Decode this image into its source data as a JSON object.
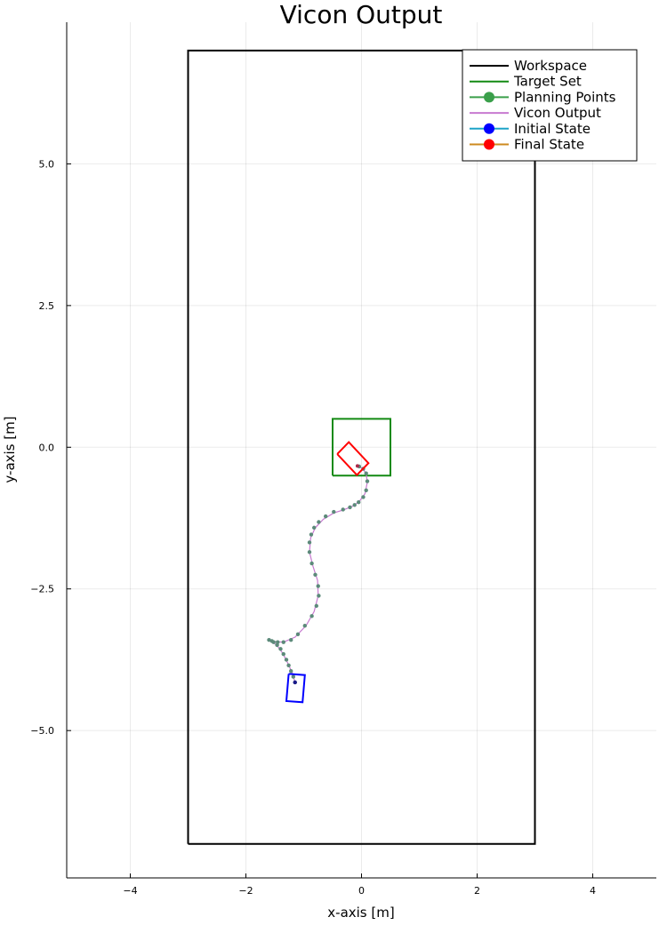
{
  "chart_data": {
    "type": "line",
    "title": "Vicon Output",
    "xlabel": "x-axis [m]",
    "ylabel": "y-axis [m]",
    "xlim": [
      -5.1,
      5.1
    ],
    "ylim": [
      -7.6,
      7.5
    ],
    "xticks": [
      -4,
      -2,
      0,
      2,
      4
    ],
    "xtick_labels": [
      "−4",
      "−2",
      "0",
      "2",
      "4"
    ],
    "yticks": [
      -5,
      -2.5,
      0,
      2.5,
      5
    ],
    "ytick_labels": [
      "−5.0",
      "−2.5",
      "0.0",
      "2.5",
      "5.0"
    ],
    "grid": true,
    "legend_position": "top-right",
    "legend": [
      {
        "label": "Workspace",
        "color": "#000000",
        "marker": false
      },
      {
        "label": "Target Set",
        "color": "#138a13",
        "marker": false
      },
      {
        "label": "Planning Points",
        "color": "#3a9f4a",
        "marker": true
      },
      {
        "label": "Vicon Output",
        "color": "#c77ad0",
        "marker": false
      },
      {
        "label": "Initial State",
        "color": "#1ea3c8",
        "marker": true,
        "marker_color": "#0000ff"
      },
      {
        "label": "Final State",
        "color": "#cc8a1e",
        "marker": true,
        "marker_color": "#ff0000"
      }
    ],
    "workspace": {
      "x": [
        -3,
        3,
        3,
        -3,
        -3
      ],
      "y": [
        -7,
        -7,
        7,
        7,
        -7
      ],
      "color": "#000000"
    },
    "target_set": {
      "x": [
        -0.5,
        0.5,
        0.5,
        -0.5,
        -0.5
      ],
      "y": [
        -0.5,
        -0.5,
        0.5,
        0.5,
        -0.5
      ],
      "color": "#138a13"
    },
    "planning_points": {
      "color": "#5c8a7a",
      "x": [
        -1.15,
        -1.18,
        -1.22,
        -1.26,
        -1.3,
        -1.35,
        -1.4,
        -1.46,
        -1.52,
        -1.6,
        -1.55,
        -1.45,
        -1.35,
        -1.22,
        -1.1,
        -0.98,
        -0.86,
        -0.78,
        -0.74,
        -0.75,
        -0.8,
        -0.86,
        -0.9,
        -0.9,
        -0.87,
        -0.82,
        -0.74,
        -0.62,
        -0.48,
        -0.32,
        -0.2,
        -0.12,
        -0.05,
        0.03,
        0.08,
        0.1,
        0.08,
        0.03,
        -0.04
      ],
      "y": [
        -4.15,
        -4.05,
        -3.95,
        -3.85,
        -3.75,
        -3.65,
        -3.56,
        -3.49,
        -3.44,
        -3.4,
        -3.42,
        -3.44,
        -3.44,
        -3.4,
        -3.3,
        -3.15,
        -2.98,
        -2.8,
        -2.62,
        -2.45,
        -2.25,
        -2.05,
        -1.85,
        -1.68,
        -1.54,
        -1.42,
        -1.32,
        -1.22,
        -1.14,
        -1.1,
        -1.06,
        -1.02,
        -0.97,
        -0.88,
        -0.76,
        -0.6,
        -0.46,
        -0.38,
        -0.34
      ]
    },
    "vicon_output": {
      "color": "#c77ad0",
      "x": [
        -1.15,
        -1.2,
        -1.28,
        -1.36,
        -1.46,
        -1.56,
        -1.6,
        -1.5,
        -1.35,
        -1.15,
        -0.96,
        -0.82,
        -0.75,
        -0.76,
        -0.84,
        -0.9,
        -0.88,
        -0.8,
        -0.66,
        -0.48,
        -0.3,
        -0.15,
        -0.04,
        0.06,
        0.1,
        0.08,
        0.02,
        -0.06
      ],
      "y": [
        -4.15,
        -3.98,
        -3.8,
        -3.64,
        -3.5,
        -3.42,
        -3.4,
        -3.43,
        -3.44,
        -3.35,
        -3.15,
        -2.9,
        -2.62,
        -2.35,
        -2.1,
        -1.85,
        -1.6,
        -1.42,
        -1.27,
        -1.16,
        -1.1,
        -1.04,
        -0.96,
        -0.82,
        -0.62,
        -0.46,
        -0.38,
        -0.33
      ]
    },
    "initial_state": {
      "x": -1.15,
      "y": -4.15,
      "color": "#0000ff",
      "rect": {
        "x": [
          -1.26,
          -0.98,
          -1.02,
          -1.3,
          -1.26
        ],
        "y": [
          -4.0,
          -4.02,
          -4.5,
          -4.48,
          -4.0
        ]
      }
    },
    "final_state": {
      "x": -0.07,
      "y": -0.33,
      "color": "#ff0000",
      "rect": {
        "x": [
          -0.42,
          -0.22,
          0.12,
          -0.08,
          -0.42
        ],
        "y": [
          -0.12,
          0.09,
          -0.28,
          -0.49,
          -0.12
        ]
      }
    }
  }
}
